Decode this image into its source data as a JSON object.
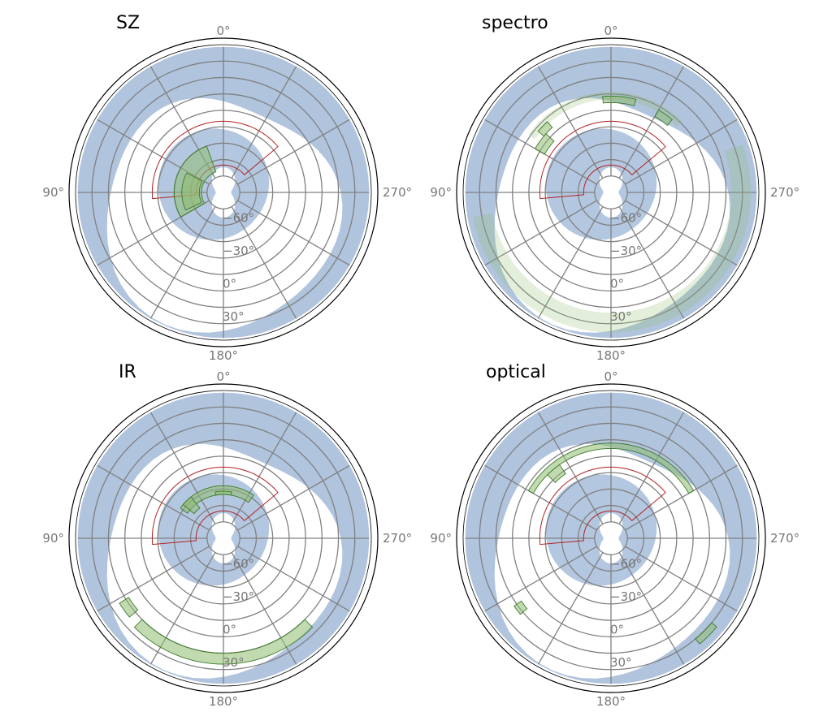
{
  "figure": {
    "panels": [
      "SZ",
      "spectro",
      "IR",
      "optical"
    ]
  },
  "chart_data": [
    {
      "type": "polar-sky-map",
      "title": "SZ",
      "projection": "polar (south pole at center), radial = declination",
      "angular_ticks": [
        "0$^\\circ$",
        "90$^\\circ$",
        "180$^\\circ$",
        "270$^\\circ$"
      ],
      "angular_tick_labels": [
        "0°",
        "90°",
        "180°",
        "270°"
      ],
      "radial_tick_labels": [
        "−60°",
        "−30°",
        "0°",
        "30°"
      ],
      "colors": {
        "masked_sky": "#b0c4de",
        "footprint_outline": "#b22222",
        "survey_fill": "#8fbc6f",
        "grid": "#808080"
      },
      "surveys": [
        {
          "kind": "annulus",
          "ra": [
            20,
            120
          ],
          "dec": [
            -70,
            -45
          ]
        },
        {
          "kind": "annulus",
          "ra": [
            62,
            115
          ],
          "dec": [
            -68,
            -52
          ]
        }
      ]
    },
    {
      "type": "polar-sky-map",
      "title": "spectro",
      "angular_tick_labels": [
        "0°",
        "90°",
        "180°",
        "270°"
      ],
      "radial_tick_labels": [
        "−60°",
        "−30°",
        "0°",
        "30°"
      ],
      "surveys": [
        {
          "kind": "annulus",
          "ra": [
            -45,
            55
          ],
          "dec": [
            -5,
            2
          ],
          "style": "dotted"
        },
        {
          "kind": "annulus",
          "ra": [
            -15,
            5
          ],
          "dec": [
            -8,
            -2
          ]
        },
        {
          "kind": "annulus",
          "ra": [
            -40,
            -30
          ],
          "dec": [
            -10,
            -3
          ]
        },
        {
          "kind": "annulus",
          "ra": [
            42,
            50
          ],
          "dec": [
            -10,
            -3
          ]
        },
        {
          "kind": "annulus",
          "ra": [
            48,
            60
          ],
          "dec": [
            -20,
            -10
          ]
        },
        {
          "kind": "annulus",
          "ra": [
            100,
            290
          ],
          "dec": [
            20,
            38
          ],
          "style": "dotted"
        }
      ]
    },
    {
      "type": "polar-sky-map",
      "title": "IR",
      "angular_tick_labels": [
        "0°",
        "90°",
        "180°",
        "270°"
      ],
      "radial_tick_labels": [
        "−60°",
        "−30°",
        "0°",
        "30°"
      ],
      "surveys": [
        {
          "kind": "annulus",
          "ra": [
            -35,
            55
          ],
          "dec": [
            -50,
            -42
          ]
        },
        {
          "kind": "annulus",
          "ra": [
            -10,
            10
          ],
          "dec": [
            -50,
            -47
          ]
        },
        {
          "kind": "annulus",
          "ra": [
            38,
            50
          ],
          "dec": [
            -55,
            -42
          ]
        },
        {
          "kind": "annulus",
          "ra": [
            135,
            225
          ],
          "dec": [
            15,
            25
          ]
        },
        {
          "kind": "annulus",
          "ra": [
            122,
            130
          ],
          "dec": [
            12,
            22
          ]
        }
      ]
    },
    {
      "type": "polar-sky-map",
      "title": "optical",
      "angular_tick_labels": [
        "0°",
        "90°",
        "180°",
        "270°"
      ],
      "radial_tick_labels": [
        "−60°",
        "−30°",
        "0°",
        "30°"
      ],
      "surveys": [
        {
          "kind": "annulus",
          "ra": [
            -60,
            60
          ],
          "dec": [
            -8,
            -3
          ]
        },
        {
          "kind": "annulus",
          "ra": [
            35,
            45
          ],
          "dec": [
            -18,
            -8
          ]
        },
        {
          "kind": "annulus",
          "ra": [
            125,
            130
          ],
          "dec": [
            10,
            18
          ]
        },
        {
          "kind": "annulus",
          "ra": [
            220,
            230
          ],
          "dec": [
            30,
            36
          ]
        }
      ]
    }
  ]
}
